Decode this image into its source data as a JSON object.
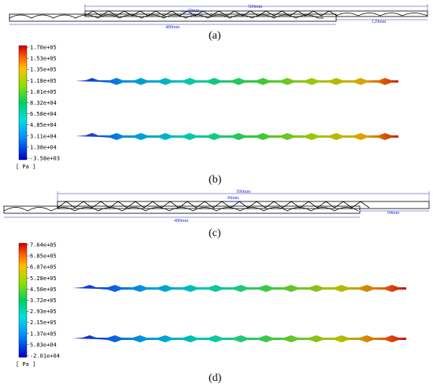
{
  "panels": {
    "a": {
      "label": "(a)",
      "dim_long": "500mm",
      "dim_pitch": "30mm",
      "dim_short": "480mm",
      "dim_offset": "129mm"
    },
    "b": {
      "label": "(b)"
    },
    "c": {
      "label": "(c)",
      "dim_long": "500mm",
      "dim_pitch": "30mm",
      "dim_short": "480mm",
      "dim_offset": "94mm"
    },
    "d": {
      "label": "(d)"
    }
  },
  "colorbar_b": {
    "unit": "[ Pa ]",
    "ticks": [
      "1.70e+05",
      "1.53e+05",
      "1.35e+05",
      "1.18e+05",
      "1.01e+05",
      "8.32e+04",
      "6.58e+04",
      "4.85e+04",
      "3.11e+04",
      "1.38e+04",
      "-3.58e+03"
    ]
  },
  "colorbar_d": {
    "unit": "[ Pa ]",
    "ticks": [
      "7.64e+05",
      "6.85e+05",
      "6.07e+05",
      "5.28e+05",
      "4.50e+05",
      "3.72e+05",
      "2.93e+05",
      "2.15e+05",
      "1.37e+05",
      "5.83e+04",
      "-2.01e+04"
    ]
  },
  "colors": {
    "dimension": "#2b2bd0",
    "outline": "#000000"
  }
}
